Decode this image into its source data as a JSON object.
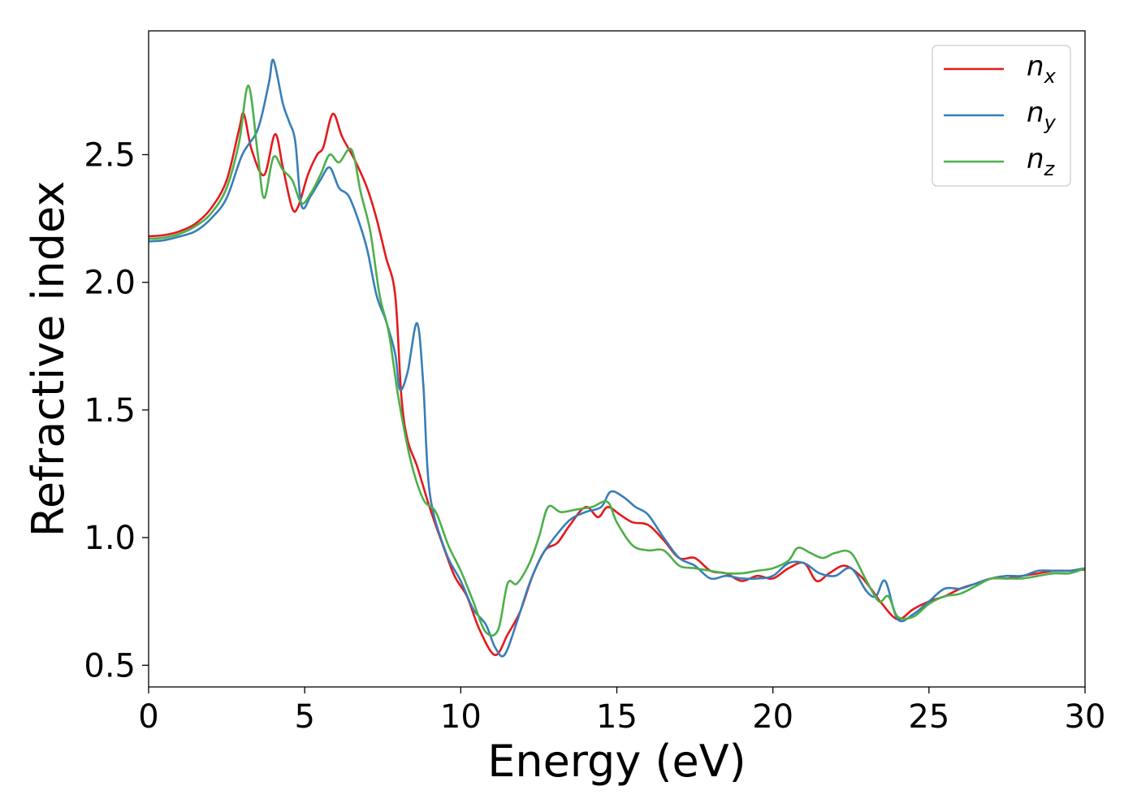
{
  "chart_data": {
    "type": "line",
    "xlabel": "Energy (eV)",
    "ylabel": "Refractive index",
    "xlim": [
      0,
      30
    ],
    "ylim": [
      0.415,
      2.985
    ],
    "xticks": [
      0,
      5,
      10,
      15,
      20,
      25,
      30
    ],
    "yticks": [
      0.5,
      1.0,
      1.5,
      2.0,
      2.5
    ],
    "xtick_labels": [
      "0",
      "5",
      "10",
      "15",
      "20",
      "25",
      "30"
    ],
    "ytick_labels": [
      "0.5",
      "1.0",
      "1.5",
      "2.0",
      "2.5"
    ],
    "grid": false,
    "legend_position": "top-right",
    "series": [
      {
        "name": "n",
        "subscript": "x",
        "color": "#e41a1c",
        "points": [
          [
            0,
            2.18
          ],
          [
            0.5,
            2.185
          ],
          [
            1,
            2.2
          ],
          [
            1.5,
            2.23
          ],
          [
            2,
            2.29
          ],
          [
            2.5,
            2.4
          ],
          [
            2.9,
            2.6
          ],
          [
            3.05,
            2.66
          ],
          [
            3.3,
            2.52
          ],
          [
            3.7,
            2.42
          ],
          [
            4.05,
            2.58
          ],
          [
            4.3,
            2.45
          ],
          [
            4.6,
            2.29
          ],
          [
            4.8,
            2.3
          ],
          [
            5.1,
            2.42
          ],
          [
            5.4,
            2.5
          ],
          [
            5.6,
            2.53
          ],
          [
            5.9,
            2.66
          ],
          [
            6.2,
            2.57
          ],
          [
            6.6,
            2.48
          ],
          [
            7,
            2.37
          ],
          [
            7.3,
            2.25
          ],
          [
            7.6,
            2.1
          ],
          [
            7.9,
            1.95
          ],
          [
            8.1,
            1.55
          ],
          [
            8.3,
            1.38
          ],
          [
            8.6,
            1.28
          ],
          [
            9,
            1.12
          ],
          [
            9.4,
            0.98
          ],
          [
            9.8,
            0.85
          ],
          [
            10.2,
            0.77
          ],
          [
            10.6,
            0.64
          ],
          [
            11.1,
            0.54
          ],
          [
            11.5,
            0.62
          ],
          [
            11.9,
            0.71
          ],
          [
            12.3,
            0.85
          ],
          [
            12.7,
            0.95
          ],
          [
            13.1,
            0.98
          ],
          [
            13.5,
            1.05
          ],
          [
            14,
            1.12
          ],
          [
            14.4,
            1.08
          ],
          [
            14.7,
            1.12
          ],
          [
            15.1,
            1.09
          ],
          [
            15.5,
            1.06
          ],
          [
            16,
            1.05
          ],
          [
            16.5,
            0.99
          ],
          [
            17,
            0.92
          ],
          [
            17.5,
            0.92
          ],
          [
            18,
            0.87
          ],
          [
            18.5,
            0.86
          ],
          [
            19,
            0.83
          ],
          [
            19.5,
            0.85
          ],
          [
            20,
            0.84
          ],
          [
            20.5,
            0.88
          ],
          [
            21,
            0.9
          ],
          [
            21.4,
            0.83
          ],
          [
            21.8,
            0.86
          ],
          [
            22.3,
            0.89
          ],
          [
            22.8,
            0.85
          ],
          [
            23.2,
            0.79
          ],
          [
            23.5,
            0.74
          ],
          [
            24,
            0.68
          ],
          [
            24.5,
            0.72
          ],
          [
            25,
            0.75
          ],
          [
            25.5,
            0.77
          ],
          [
            26,
            0.8
          ],
          [
            26.5,
            0.82
          ],
          [
            27,
            0.84
          ],
          [
            27.5,
            0.84
          ],
          [
            28,
            0.85
          ],
          [
            28.5,
            0.86
          ],
          [
            29,
            0.87
          ],
          [
            29.5,
            0.87
          ],
          [
            30,
            0.875
          ]
        ]
      },
      {
        "name": "n",
        "subscript": "y",
        "color": "#377eb8",
        "points": [
          [
            0,
            2.16
          ],
          [
            0.5,
            2.165
          ],
          [
            1,
            2.18
          ],
          [
            1.5,
            2.2
          ],
          [
            2,
            2.25
          ],
          [
            2.5,
            2.33
          ],
          [
            3,
            2.5
          ],
          [
            3.5,
            2.6
          ],
          [
            3.85,
            2.78
          ],
          [
            4.0,
            2.87
          ],
          [
            4.3,
            2.7
          ],
          [
            4.5,
            2.63
          ],
          [
            4.7,
            2.55
          ],
          [
            4.9,
            2.3
          ],
          [
            5.2,
            2.34
          ],
          [
            5.5,
            2.4
          ],
          [
            5.8,
            2.45
          ],
          [
            6.1,
            2.37
          ],
          [
            6.4,
            2.34
          ],
          [
            6.7,
            2.25
          ],
          [
            7,
            2.13
          ],
          [
            7.3,
            1.95
          ],
          [
            7.6,
            1.85
          ],
          [
            7.9,
            1.72
          ],
          [
            8.05,
            1.58
          ],
          [
            8.3,
            1.65
          ],
          [
            8.6,
            1.84
          ],
          [
            8.8,
            1.6
          ],
          [
            9,
            1.18
          ],
          [
            9.5,
            0.95
          ],
          [
            10,
            0.83
          ],
          [
            10.4,
            0.72
          ],
          [
            10.8,
            0.66
          ],
          [
            11.1,
            0.57
          ],
          [
            11.4,
            0.54
          ],
          [
            11.8,
            0.67
          ],
          [
            12.2,
            0.82
          ],
          [
            12.6,
            0.93
          ],
          [
            13,
            1.0
          ],
          [
            13.5,
            1.07
          ],
          [
            14,
            1.1
          ],
          [
            14.5,
            1.12
          ],
          [
            14.8,
            1.18
          ],
          [
            15.2,
            1.16
          ],
          [
            15.6,
            1.12
          ],
          [
            16,
            1.09
          ],
          [
            16.5,
            1.0
          ],
          [
            17,
            0.92
          ],
          [
            17.5,
            0.89
          ],
          [
            18,
            0.84
          ],
          [
            18.5,
            0.85
          ],
          [
            19,
            0.84
          ],
          [
            19.5,
            0.84
          ],
          [
            20,
            0.85
          ],
          [
            20.5,
            0.9
          ],
          [
            21,
            0.9
          ],
          [
            21.5,
            0.86
          ],
          [
            22,
            0.85
          ],
          [
            22.5,
            0.88
          ],
          [
            23,
            0.79
          ],
          [
            23.3,
            0.77
          ],
          [
            23.6,
            0.83
          ],
          [
            24,
            0.68
          ],
          [
            24.5,
            0.7
          ],
          [
            25,
            0.75
          ],
          [
            25.5,
            0.8
          ],
          [
            26,
            0.8
          ],
          [
            26.5,
            0.82
          ],
          [
            27,
            0.84
          ],
          [
            27.5,
            0.85
          ],
          [
            28,
            0.85
          ],
          [
            28.5,
            0.87
          ],
          [
            29,
            0.87
          ],
          [
            29.5,
            0.87
          ],
          [
            30,
            0.88
          ]
        ]
      },
      {
        "name": "n",
        "subscript": "z",
        "color": "#4daf4a",
        "points": [
          [
            0,
            2.17
          ],
          [
            0.5,
            2.175
          ],
          [
            1,
            2.19
          ],
          [
            1.5,
            2.22
          ],
          [
            2,
            2.27
          ],
          [
            2.5,
            2.37
          ],
          [
            2.9,
            2.55
          ],
          [
            3.2,
            2.77
          ],
          [
            3.5,
            2.5
          ],
          [
            3.7,
            2.33
          ],
          [
            4.0,
            2.49
          ],
          [
            4.3,
            2.44
          ],
          [
            4.6,
            2.4
          ],
          [
            4.9,
            2.31
          ],
          [
            5.2,
            2.35
          ],
          [
            5.5,
            2.42
          ],
          [
            5.8,
            2.5
          ],
          [
            6.1,
            2.47
          ],
          [
            6.5,
            2.52
          ],
          [
            6.8,
            2.35
          ],
          [
            7.1,
            2.2
          ],
          [
            7.4,
            1.95
          ],
          [
            7.7,
            1.8
          ],
          [
            8,
            1.55
          ],
          [
            8.4,
            1.3
          ],
          [
            8.8,
            1.15
          ],
          [
            9.2,
            1.1
          ],
          [
            9.6,
            0.97
          ],
          [
            10,
            0.87
          ],
          [
            10.4,
            0.75
          ],
          [
            10.8,
            0.63
          ],
          [
            11.2,
            0.64
          ],
          [
            11.5,
            0.82
          ],
          [
            11.8,
            0.82
          ],
          [
            12.2,
            0.9
          ],
          [
            12.5,
            1.0
          ],
          [
            12.8,
            1.12
          ],
          [
            13.2,
            1.1
          ],
          [
            13.7,
            1.11
          ],
          [
            14.2,
            1.12
          ],
          [
            14.7,
            1.14
          ],
          [
            15,
            1.06
          ],
          [
            15.5,
            0.97
          ],
          [
            16,
            0.95
          ],
          [
            16.5,
            0.95
          ],
          [
            17,
            0.89
          ],
          [
            17.5,
            0.88
          ],
          [
            18,
            0.87
          ],
          [
            18.5,
            0.86
          ],
          [
            19,
            0.86
          ],
          [
            19.5,
            0.87
          ],
          [
            20,
            0.88
          ],
          [
            20.5,
            0.91
          ],
          [
            20.8,
            0.96
          ],
          [
            21.2,
            0.94
          ],
          [
            21.6,
            0.92
          ],
          [
            22,
            0.94
          ],
          [
            22.5,
            0.94
          ],
          [
            23,
            0.83
          ],
          [
            23.4,
            0.75
          ],
          [
            23.7,
            0.77
          ],
          [
            24,
            0.69
          ],
          [
            24.5,
            0.69
          ],
          [
            25,
            0.74
          ],
          [
            25.5,
            0.77
          ],
          [
            26,
            0.78
          ],
          [
            26.5,
            0.81
          ],
          [
            27,
            0.84
          ],
          [
            27.5,
            0.84
          ],
          [
            28,
            0.84
          ],
          [
            28.5,
            0.85
          ],
          [
            29,
            0.86
          ],
          [
            29.5,
            0.86
          ],
          [
            30,
            0.88
          ]
        ]
      }
    ]
  }
}
